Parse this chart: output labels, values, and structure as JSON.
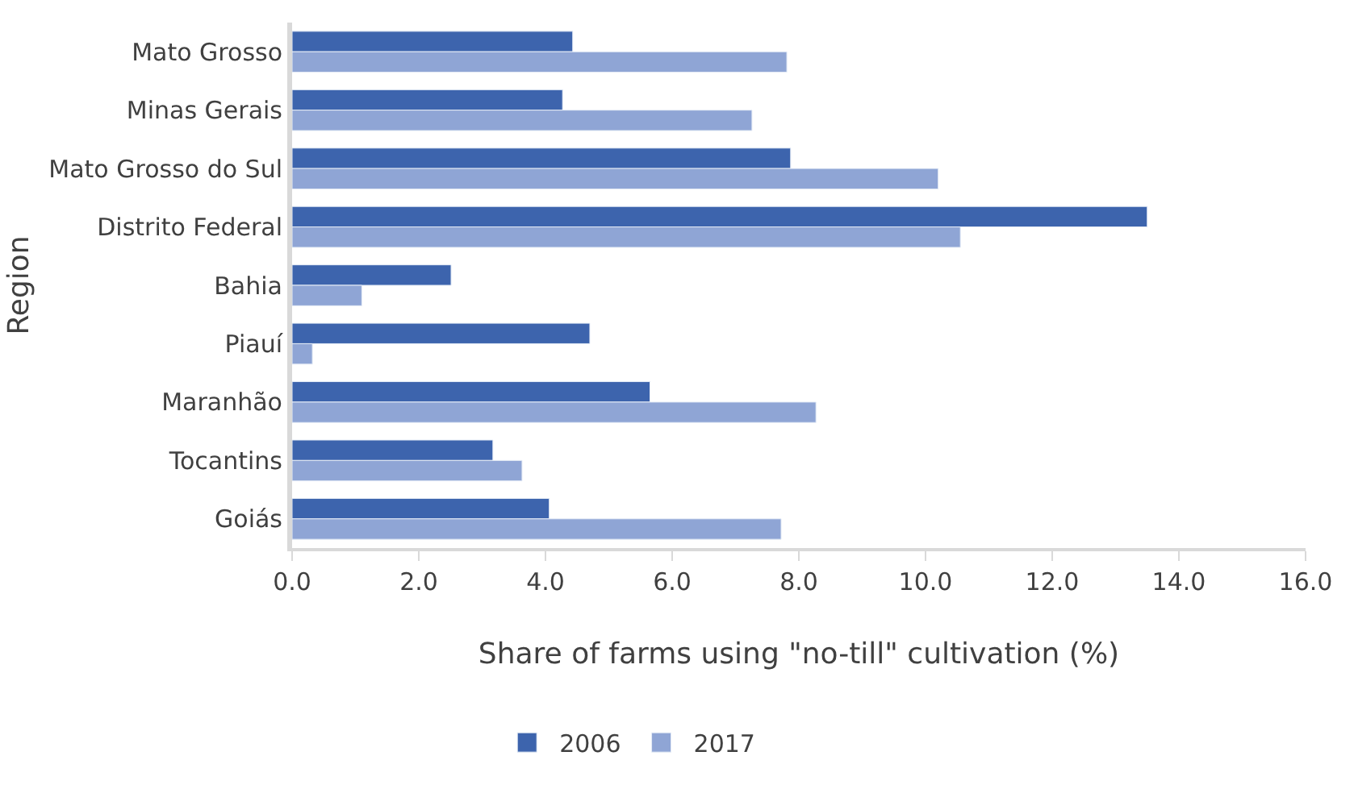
{
  "chart_data": {
    "type": "bar",
    "orientation": "horizontal",
    "categories": [
      "Mato Grosso",
      "Minas Gerais",
      "Mato Grosso do Sul",
      "Distrito Federal",
      "Bahia",
      "Piauí",
      "Maranhão",
      "Tocantins",
      "Goiás"
    ],
    "series": [
      {
        "name": "2006",
        "color": "#3d64ad",
        "values": [
          4.43,
          4.27,
          7.87,
          13.5,
          2.51,
          4.7,
          5.65,
          3.17,
          4.06
        ]
      },
      {
        "name": "2017",
        "color": "#8fa5d5",
        "values": [
          7.81,
          7.26,
          10.2,
          10.55,
          1.1,
          0.32,
          8.27,
          3.63,
          7.72
        ]
      }
    ],
    "xlim": [
      0,
      16
    ],
    "xticks": [
      {
        "value": 0,
        "label": "0.0"
      },
      {
        "value": 2,
        "label": "2.0"
      },
      {
        "value": 4,
        "label": "4.0"
      },
      {
        "value": 6,
        "label": "6.0"
      },
      {
        "value": 8,
        "label": "8.0"
      },
      {
        "value": 10,
        "label": "10.0"
      },
      {
        "value": 12,
        "label": "12.0"
      },
      {
        "value": 14,
        "label": "14.0"
      },
      {
        "value": 16,
        "label": "16.0"
      }
    ],
    "xlabel": "Share of farms using \"no-till\" cultivation (%)",
    "ylabel": "Region",
    "legend": "bottom"
  }
}
